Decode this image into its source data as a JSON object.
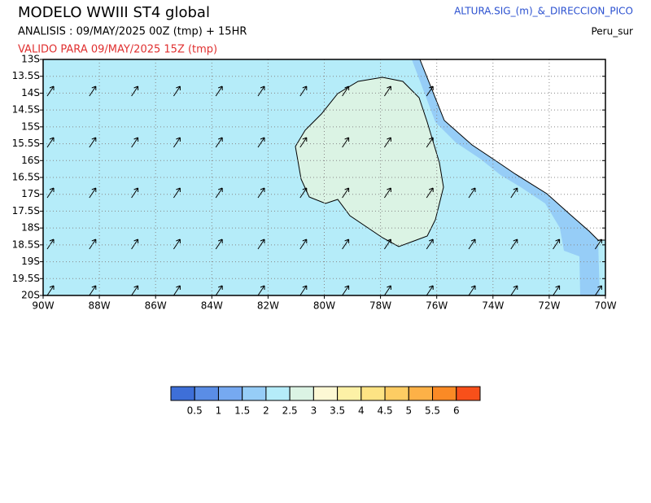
{
  "header": {
    "title": "MODELO  WWIII  ST4  global",
    "analysis": "ANALISIS : 09/MAY/2025 00Z   (tmp) + 15HR",
    "valid": "VALIDO PARA  09/MAY/2025 15Z  (tmp)",
    "variable": "ALTURA.SIG_(m)_&_DIRECCION_PICO",
    "region": "Peru_sur"
  },
  "map": {
    "lat_labels": [
      "13S",
      "13.5S",
      "14S",
      "14.5S",
      "15S",
      "15.5S",
      "16S",
      "16.5S",
      "17S",
      "17.5S",
      "18S",
      "18.5S",
      "19S",
      "19.5S",
      "20S"
    ],
    "lon_labels": [
      "90W",
      "88W",
      "86W",
      "84W",
      "82W",
      "80W",
      "78W",
      "76W",
      "74W",
      "72W",
      "70W"
    ]
  },
  "colorbar": {
    "labels": [
      "0.5",
      "1",
      "1.5",
      "2",
      "2.5",
      "3",
      "3.5",
      "4",
      "4.5",
      "5",
      "5.5",
      "6"
    ],
    "colors": [
      "#3e6fd8",
      "#5a8de6",
      "#76a9f1",
      "#96cdf7",
      "#b5ecf9",
      "#dbf3e4",
      "#fdf8d4",
      "#fdf1a6",
      "#fde384",
      "#fdcc63",
      "#fdb147",
      "#fb8a25",
      "#f8501a"
    ]
  }
}
